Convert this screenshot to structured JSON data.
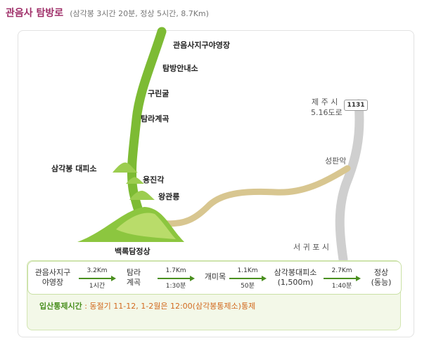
{
  "header": {
    "title": "관음사 탐방로",
    "subtitle": "(삼각봉 3시간 20분, 정상 5시간, 8.7Km)"
  },
  "map_labels": {
    "campground": "관음사지구야영장",
    "info_center": "탐방안내소",
    "gurin_cave": "구린굴",
    "tamra_valley": "탐라계곡",
    "samgakbong_shelter": "삼각봉 대피소",
    "yongjingak": "용진각",
    "wanggwanneung": "왕관릉",
    "baengnokdam_summit": "백록담정상",
    "jeju_city": "제 주 시",
    "road_516": "5.16도로",
    "road_number": "1131",
    "seongpanak": "성판악",
    "seogwipo_city": "서 귀 포 시"
  },
  "route": {
    "stops": [
      {
        "line1": "관음사지구",
        "line2": "야영장"
      },
      {
        "line1": "탐라",
        "line2": "계곡"
      },
      {
        "line1": "개미목",
        "line2": ""
      },
      {
        "line1": "삼각봉대피소",
        "line2": "(1,500m)"
      },
      {
        "line1": "정상",
        "line2": "(동능)"
      }
    ],
    "segments": [
      {
        "distance": "3.2Km",
        "time": "1시간"
      },
      {
        "distance": "1.7Km",
        "time": "1:30분"
      },
      {
        "distance": "1.1Km",
        "time": "50분"
      },
      {
        "distance": "2.7Km",
        "time": "1:40분"
      }
    ]
  },
  "notice": {
    "label": "입산통제시간",
    "text": ": 동절기 11-12, 1-2월은 12:00(삼각봉통제소)통제"
  },
  "colors": {
    "trail_green": "#7dbb34",
    "trail_tan": "#d8c690",
    "road_gray": "#c8c8c8",
    "title": "#a0306a"
  }
}
